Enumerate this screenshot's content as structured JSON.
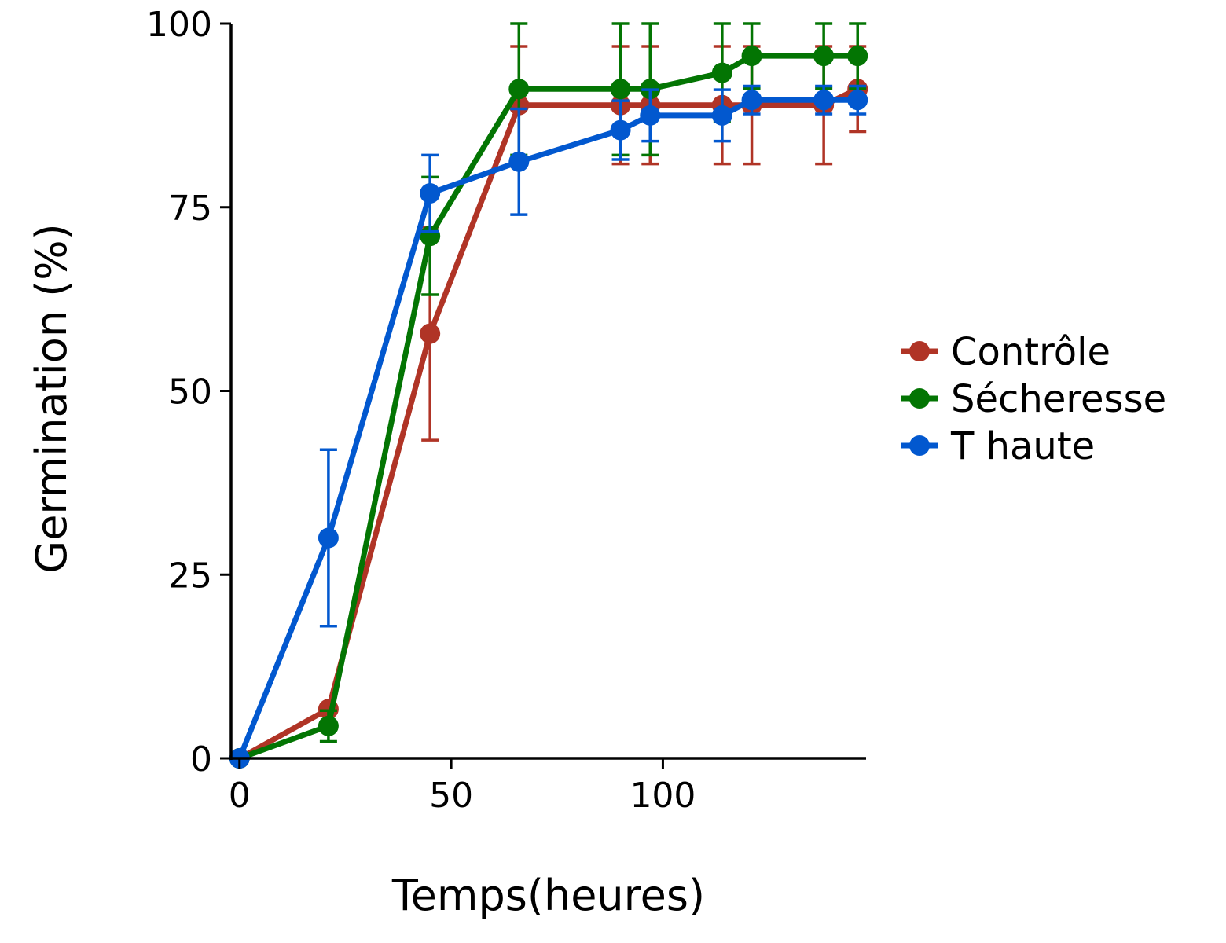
{
  "chart_data": {
    "type": "line",
    "xlabel": "Temps(heures)",
    "ylabel": "Germination (%)",
    "xlim": [
      -2,
      148
    ],
    "ylim": [
      0,
      100
    ],
    "xticks": [
      0,
      50,
      100
    ],
    "yticks": [
      0,
      25,
      50,
      75,
      100
    ],
    "xtick_labels": [
      "0",
      "50",
      "100"
    ],
    "ytick_labels": [
      "0",
      "25",
      "50",
      "75",
      "100"
    ],
    "grid": false,
    "legend_position": "right",
    "error_bars": true,
    "x": [
      0,
      21,
      45,
      66,
      90,
      97,
      114,
      121,
      138,
      146
    ],
    "series": [
      {
        "name": "Contrôle",
        "color": "#b03426",
        "values": [
          0,
          6.7,
          57.8,
          88.9,
          88.9,
          88.9,
          88.9,
          88.9,
          88.9,
          91.1
        ],
        "error": [
          0,
          0,
          14.5,
          8,
          8,
          8,
          8,
          8,
          8,
          5.8
        ]
      },
      {
        "name": "Sécheresse",
        "color": "#037503",
        "values": [
          0,
          4.4,
          71.1,
          91.1,
          91.1,
          91.1,
          93.3,
          95.6,
          95.6,
          95.6
        ],
        "error": [
          0,
          2.1,
          8,
          9,
          9,
          9,
          6.7,
          4.4,
          4.4,
          4.4
        ]
      },
      {
        "name": "T haute",
        "color": "#0258cf",
        "values": [
          0,
          30,
          76.9,
          81.2,
          85.5,
          87.5,
          87.5,
          89.6,
          89.6,
          89.6
        ],
        "error": [
          0,
          12,
          5.2,
          7.2,
          4,
          3.5,
          3.5,
          1.9,
          1.9,
          1.9
        ]
      }
    ]
  }
}
